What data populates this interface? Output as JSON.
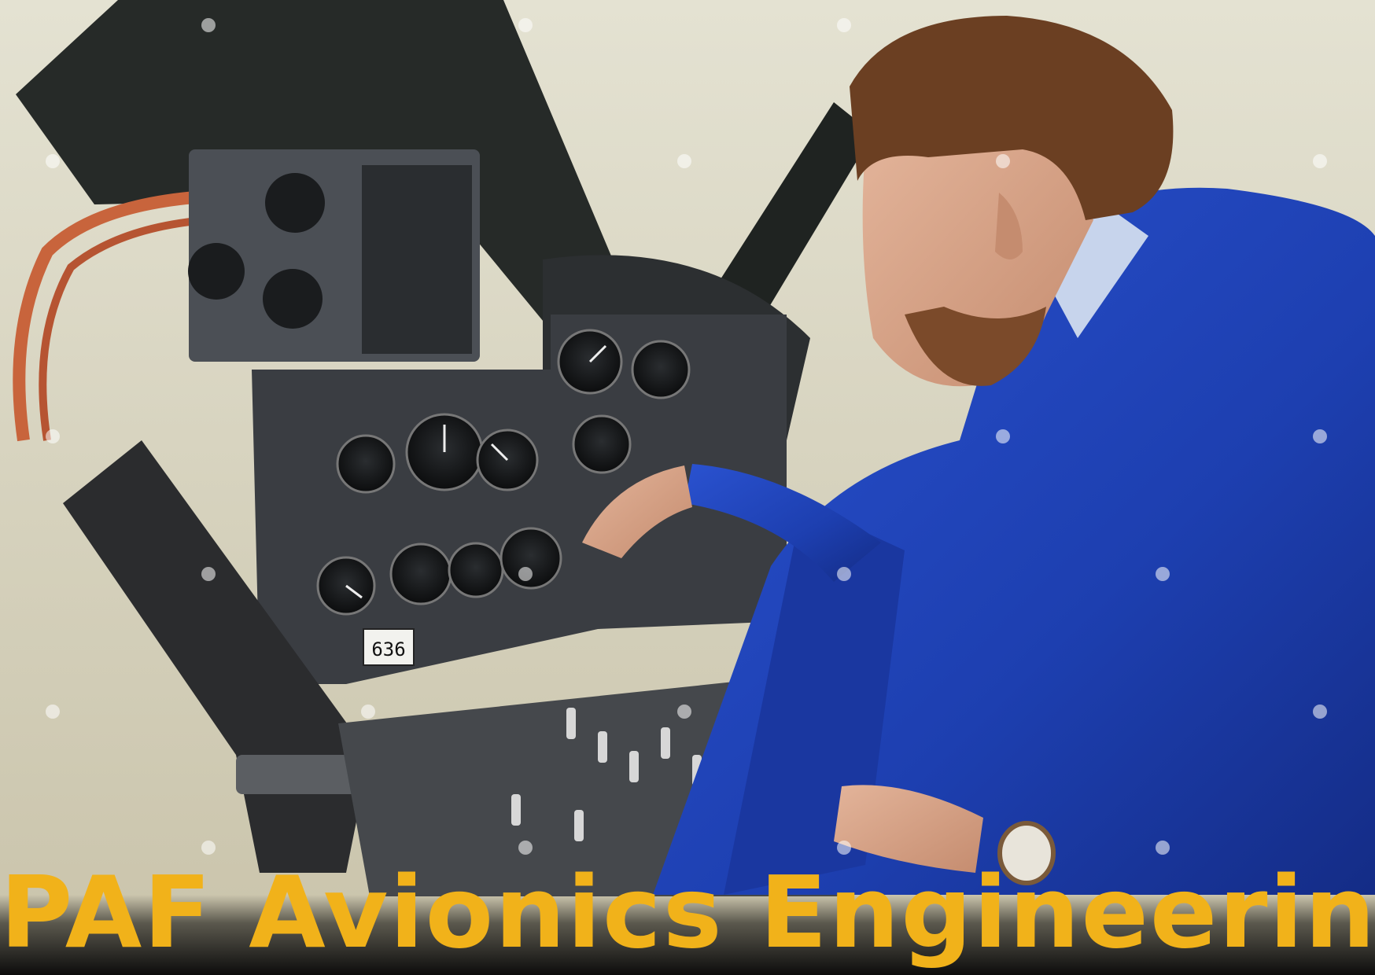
{
  "title": "PAF Avionics Engineering",
  "colors": {
    "title_text": "#f1b21a",
    "caption_band": "#0c0c0c",
    "coverall": "#1d3fb0",
    "instrument_panel": "#3a3d42",
    "cockpit_frame": "#2a2e2c",
    "wall": "#d9d6c3"
  },
  "scene": {
    "panel_placard": "636"
  }
}
